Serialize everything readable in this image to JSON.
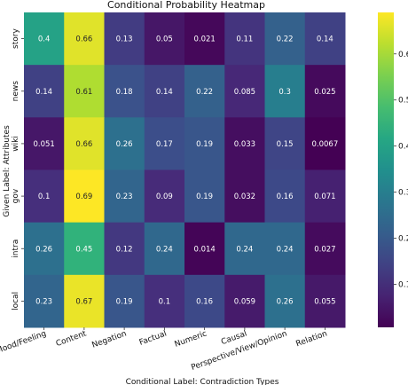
{
  "chart_data": {
    "type": "heatmap",
    "title": "Conditional Probability Heatmap",
    "xlabel": "Conditional Label: Contradiction Types",
    "ylabel": "Given Label: Attributes",
    "x_categories": [
      "Emotion/Mood/Feeling",
      "Content",
      "Negation",
      "Factual",
      "Numeric",
      "Causal",
      "Perspective/View/Opinion",
      "Relation"
    ],
    "y_categories": [
      "story",
      "news",
      "wiki",
      "gov",
      "intra",
      "local"
    ],
    "values": [
      [
        0.4,
        0.66,
        0.13,
        0.05,
        0.021,
        0.11,
        0.22,
        0.14
      ],
      [
        0.14,
        0.61,
        0.18,
        0.14,
        0.22,
        0.085,
        0.3,
        0.025
      ],
      [
        0.051,
        0.66,
        0.26,
        0.17,
        0.19,
        0.033,
        0.15,
        0.0067
      ],
      [
        0.1,
        0.69,
        0.23,
        0.09,
        0.19,
        0.032,
        0.16,
        0.071
      ],
      [
        0.26,
        0.45,
        0.12,
        0.24,
        0.014,
        0.24,
        0.24,
        0.027
      ],
      [
        0.23,
        0.67,
        0.19,
        0.1,
        0.16,
        0.059,
        0.26,
        0.055
      ]
    ],
    "value_labels": [
      [
        "0.4",
        "0.66",
        "0.13",
        "0.05",
        "0.021",
        "0.11",
        "0.22",
        "0.14"
      ],
      [
        "0.14",
        "0.61",
        "0.18",
        "0.14",
        "0.22",
        "0.085",
        "0.3",
        "0.025"
      ],
      [
        "0.051",
        "0.66",
        "0.26",
        "0.17",
        "0.19",
        "0.033",
        "0.15",
        "0.0067"
      ],
      [
        "0.1",
        "0.69",
        "0.23",
        "0.09",
        "0.19",
        "0.032",
        "0.16",
        "0.071"
      ],
      [
        "0.26",
        "0.45",
        "0.12",
        "0.24",
        "0.014",
        "0.24",
        "0.24",
        "0.027"
      ],
      [
        "0.23",
        "0.67",
        "0.19",
        "0.1",
        "0.16",
        "0.059",
        "0.26",
        "0.055"
      ]
    ],
    "colormap": "viridis",
    "color_range": [
      0.0067,
      0.69
    ],
    "colorbar_ticks": [
      0.1,
      0.2,
      0.3,
      0.4,
      0.5,
      0.6
    ],
    "colorbar_tick_labels": [
      "0.1",
      "0.2",
      "0.3",
      "0.4",
      "0.5",
      "0.6"
    ],
    "grid": false,
    "legend": "colorbar-right"
  }
}
